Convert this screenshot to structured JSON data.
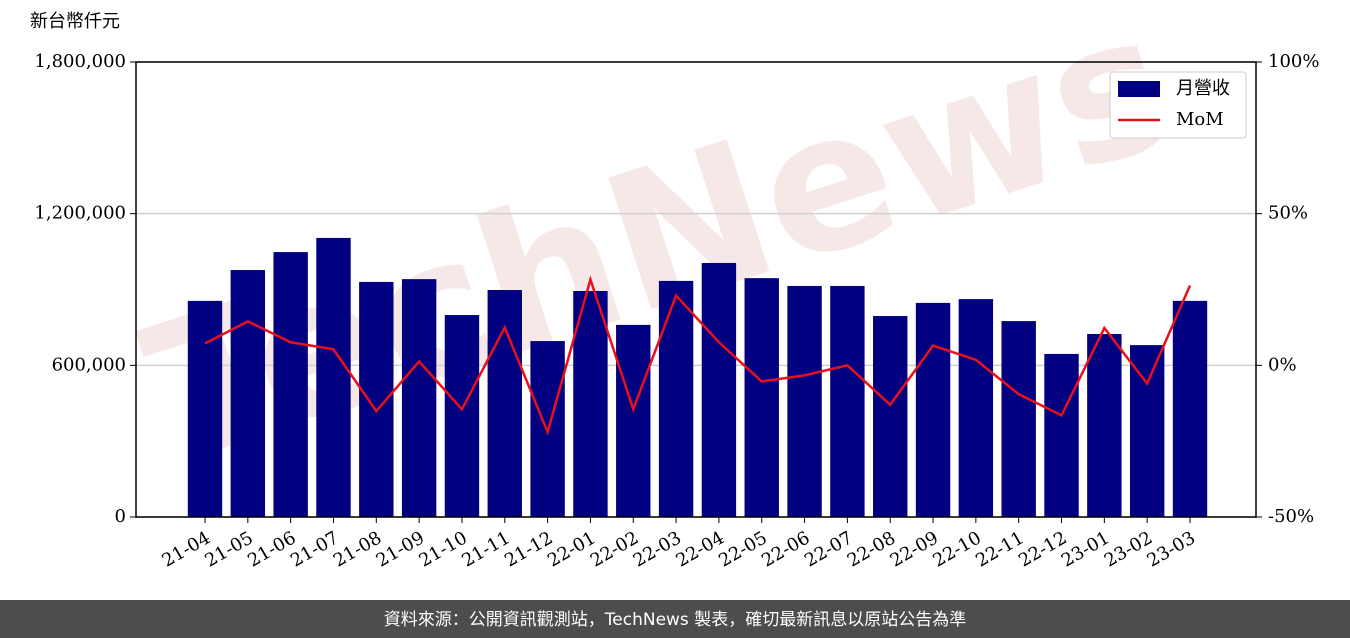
{
  "chart_data": {
    "type": "bar_line",
    "y_label": "新台幣仟元",
    "watermark": "TechNews",
    "source": "資料來源：公開資訊觀測站，TechNews 製表，確切最新訊息以原站公告為準",
    "categories": [
      "21-04",
      "21-05",
      "21-06",
      "21-07",
      "21-08",
      "21-09",
      "21-10",
      "21-11",
      "21-12",
      "22-01",
      "22-02",
      "22-03",
      "22-04",
      "22-05",
      "22-06",
      "22-07",
      "22-08",
      "22-09",
      "22-10",
      "22-11",
      "22-12",
      "23-01",
      "23-02",
      "23-03"
    ],
    "series": [
      {
        "name": "月營收",
        "type": "bar",
        "color": "#000080",
        "values": [
          855000,
          977000,
          1048000,
          1104000,
          930000,
          941000,
          799000,
          898000,
          696000,
          894000,
          760000,
          934000,
          1005000,
          945000,
          914000,
          914000,
          795000,
          847000,
          862000,
          775000,
          645000,
          724000,
          680000,
          855000
        ]
      },
      {
        "name": "MoM",
        "type": "line",
        "axis": "y2",
        "color": "#e8101a",
        "values": [
          7.2,
          14.5,
          7.6,
          5.3,
          -15.1,
          1.3,
          -14.5,
          12.5,
          -22.0,
          28.3,
          -14.5,
          23.0,
          7.6,
          -5.3,
          -3.3,
          0,
          -13.0,
          6.5,
          1.8,
          -9.5,
          -16.5,
          12.3,
          -6.0,
          26.3
        ]
      }
    ],
    "ylim": [
      0,
      1800000
    ],
    "yticks": [
      0,
      {
        "value": 600000,
        "label": "600,000"
      },
      {
        "value": 1200000,
        "label": "1,200,000"
      },
      {
        "value": 1800000,
        "label": "1,800,000"
      }
    ],
    "y2lim": [
      -50,
      100
    ],
    "y2ticks": [
      {
        "value": -50,
        "label": "-50%"
      },
      {
        "value": 0,
        "label": "0%"
      },
      {
        "value": 50,
        "label": "50%"
      },
      {
        "value": 100,
        "label": "100%"
      }
    ],
    "grid": true,
    "legend": "upper right"
  }
}
